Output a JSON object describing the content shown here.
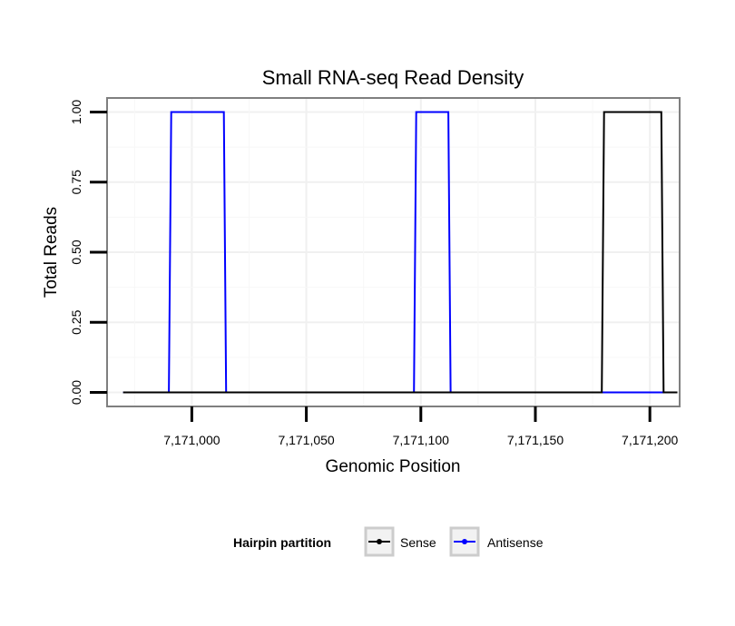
{
  "chart_data": {
    "type": "line",
    "title": "Small RNA-seq Read Density",
    "xlabel": "Genomic Position",
    "ylabel": "Total Reads",
    "xlim": [
      7170963,
      7171213
    ],
    "ylim": [
      -0.05,
      1.05
    ],
    "x_ticks": [
      7171000,
      7171050,
      7171100,
      7171150,
      7171200
    ],
    "x_tick_labels": [
      "7,171,000",
      "7,171,050",
      "7,171,100",
      "7,171,150",
      "7,171,200"
    ],
    "y_ticks": [
      0,
      0.25,
      0.5,
      0.75,
      1.0
    ],
    "y_tick_labels": [
      "0.00",
      "0.25",
      "0.50",
      "0.75",
      "1.00"
    ],
    "grid": true,
    "legend": {
      "title": "Hairpin partition",
      "placement": "bottom",
      "entries": [
        "Sense",
        "Antisense"
      ]
    },
    "series": [
      {
        "name": "Antisense",
        "color": "#0000ff",
        "x": [
          7170970,
          7170990,
          7170991,
          7171014,
          7171015,
          7171097,
          7171098,
          7171112,
          7171113,
          7171179,
          7171207
        ],
        "values": [
          0,
          0,
          1,
          1,
          0,
          0,
          1,
          1,
          0,
          0,
          0
        ]
      },
      {
        "name": "Sense",
        "color": "#000000",
        "x": [
          7170970,
          7171179,
          7171180,
          7171205,
          7171206,
          7171212
        ],
        "values": [
          0,
          0,
          1,
          1,
          0,
          0
        ]
      }
    ]
  }
}
